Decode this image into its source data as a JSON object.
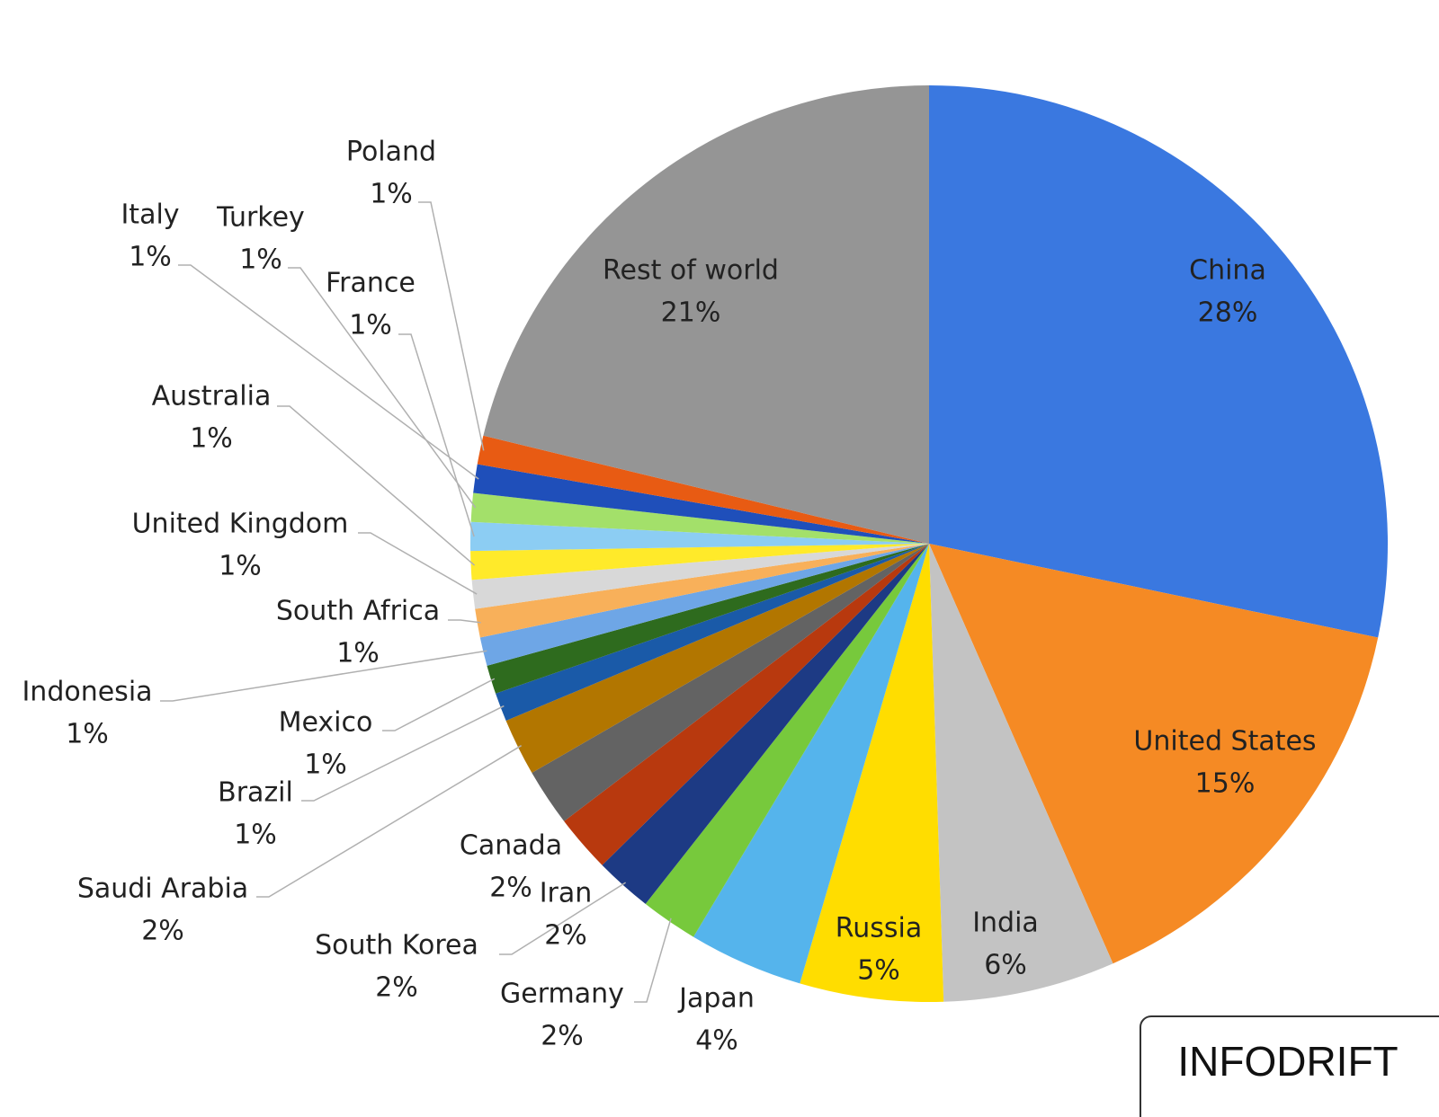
{
  "chart_data": {
    "type": "pie",
    "categories": [
      "China",
      "United States",
      "India",
      "Russia",
      "Japan",
      "Germany",
      "South Korea",
      "Iran",
      "Canada",
      "Saudi Arabia",
      "Brazil",
      "Mexico",
      "Indonesia",
      "South Africa",
      "United Kingdom",
      "Australia",
      "France",
      "Turkey",
      "Italy",
      "Poland",
      "Rest of world"
    ],
    "values": [
      28,
      15,
      6,
      5,
      4,
      2,
      2,
      2,
      2,
      2,
      1,
      1,
      1,
      1,
      1,
      1,
      1,
      1,
      1,
      1,
      21
    ],
    "value_labels": [
      "28%",
      "15%",
      "6%",
      "5%",
      "4%",
      "2%",
      "2%",
      "2%",
      "2%",
      "2%",
      "1%",
      "1%",
      "1%",
      "1%",
      "1%",
      "1%",
      "1%",
      "1%",
      "1%",
      "1%",
      "21%"
    ],
    "colors": [
      "#3a78e0",
      "#f58a24",
      "#c3c3c3",
      "#ffdd00",
      "#55b4ec",
      "#77c93c",
      "#1d3a84",
      "#b8390e",
      "#636363",
      "#b27600",
      "#1a5aa8",
      "#2e6b1e",
      "#6ea6e6",
      "#f8b05a",
      "#d8d8d8",
      "#ffea2a",
      "#8ccdf3",
      "#a3e06a",
      "#1f4fba",
      "#e85b13",
      "#959595"
    ],
    "watermark": "INFODRIFT"
  }
}
